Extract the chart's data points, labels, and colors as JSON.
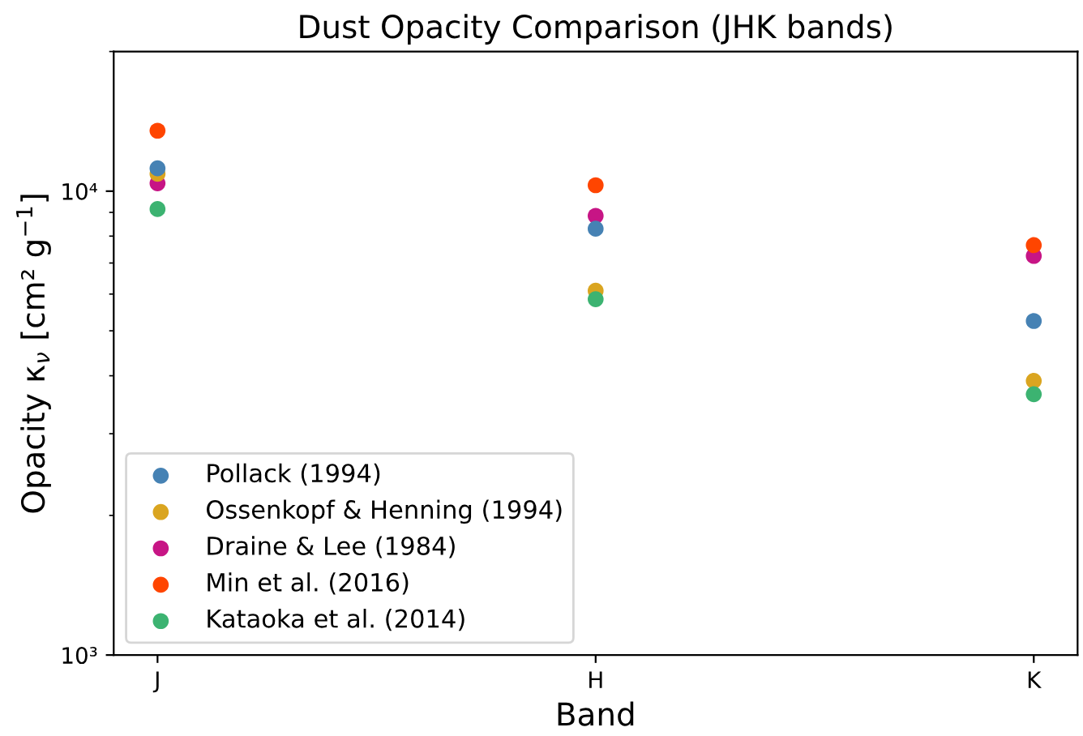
{
  "chart_data": {
    "type": "scatter",
    "title": "Dust Opacity Comparison (JHK bands)",
    "xlabel": "Band",
    "ylabel": "Opacity κ$_{ν}$ [cm² g$^{−1}$]",
    "categories": [
      "J",
      "H",
      "K"
    ],
    "series": [
      {
        "name": "Pollack (1994)",
        "color": "#4682b4",
        "values": [
          11200,
          8300,
          5250
        ]
      },
      {
        "name": "Ossenkopf & Henning (1994)",
        "color": "#daa520",
        "values": [
          10900,
          6100,
          3900
        ]
      },
      {
        "name": "Draine & Lee (1984)",
        "color": "#c71585",
        "values": [
          10400,
          8850,
          7250
        ]
      },
      {
        "name": "Min et al. (2016)",
        "color": "#ff4500",
        "values": [
          13500,
          10300,
          7650
        ]
      },
      {
        "name": "Kataoka et al. (2014)",
        "color": "#3cb371",
        "values": [
          9150,
          5850,
          3650
        ]
      }
    ],
    "log": "y",
    "ylim": [
      1000,
      20000
    ],
    "yticks": [
      {
        "value": 1000,
        "label": "10³"
      },
      {
        "value": 10000,
        "label": "10⁴"
      }
    ],
    "grid": false,
    "legend": "bottom left",
    "marker": "circle"
  }
}
